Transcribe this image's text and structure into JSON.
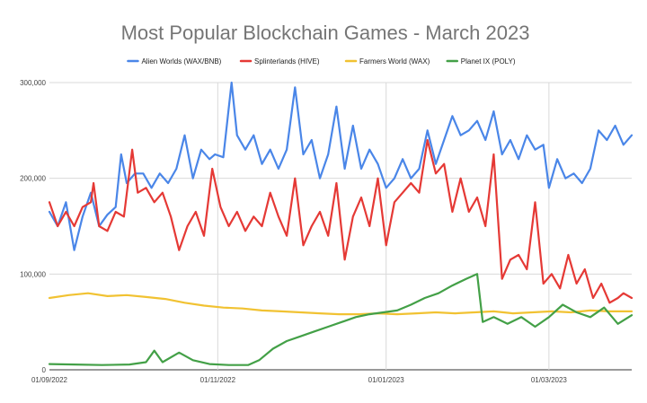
{
  "chart_data": {
    "type": "line",
    "title": "Most Popular Blockchain Games - March 2023",
    "xlabel": "",
    "ylabel": "",
    "x_start": "2022-09-01",
    "x_end": "2023-03-31",
    "x_ticks": [
      {
        "date": "2022-09-01",
        "label": "01/09/2022"
      },
      {
        "date": "2022-11-01",
        "label": "01/11/2022"
      },
      {
        "date": "2023-01-01",
        "label": "01/01/2023"
      },
      {
        "date": "2023-03-01",
        "label": "01/03/2023"
      }
    ],
    "y_ticks": [
      {
        "value": 0,
        "label": "0"
      },
      {
        "value": 100000,
        "label": "100,000"
      },
      {
        "value": 200000,
        "label": "200,000"
      },
      {
        "value": 300000,
        "label": "300,000"
      }
    ],
    "ylim": [
      0,
      300000
    ],
    "grid": true,
    "legend_position": "top",
    "series": [
      {
        "name": "Alien Worlds (WAX/BNB)",
        "color": "#4a86e8",
        "points": [
          [
            "2022-09-01",
            165000
          ],
          [
            "2022-09-04",
            150000
          ],
          [
            "2022-09-07",
            175000
          ],
          [
            "2022-09-10",
            125000
          ],
          [
            "2022-09-13",
            160000
          ],
          [
            "2022-09-16",
            185000
          ],
          [
            "2022-09-19",
            150000
          ],
          [
            "2022-09-22",
            162000
          ],
          [
            "2022-09-25",
            170000
          ],
          [
            "2022-09-27",
            225000
          ],
          [
            "2022-09-29",
            195000
          ],
          [
            "2022-10-02",
            205000
          ],
          [
            "2022-10-05",
            205000
          ],
          [
            "2022-10-08",
            190000
          ],
          [
            "2022-10-11",
            205000
          ],
          [
            "2022-10-14",
            195000
          ],
          [
            "2022-10-17",
            210000
          ],
          [
            "2022-10-20",
            245000
          ],
          [
            "2022-10-23",
            200000
          ],
          [
            "2022-10-26",
            230000
          ],
          [
            "2022-10-29",
            220000
          ],
          [
            "2022-10-31",
            225000
          ],
          [
            "2022-11-03",
            222000
          ],
          [
            "2022-11-06",
            300000
          ],
          [
            "2022-11-08",
            245000
          ],
          [
            "2022-11-11",
            230000
          ],
          [
            "2022-11-14",
            245000
          ],
          [
            "2022-11-17",
            215000
          ],
          [
            "2022-11-20",
            230000
          ],
          [
            "2022-11-23",
            210000
          ],
          [
            "2022-11-26",
            230000
          ],
          [
            "2022-11-29",
            295000
          ],
          [
            "2022-12-02",
            225000
          ],
          [
            "2022-12-05",
            240000
          ],
          [
            "2022-12-08",
            200000
          ],
          [
            "2022-12-11",
            225000
          ],
          [
            "2022-12-14",
            275000
          ],
          [
            "2022-12-17",
            210000
          ],
          [
            "2022-12-20",
            255000
          ],
          [
            "2022-12-23",
            210000
          ],
          [
            "2022-12-26",
            230000
          ],
          [
            "2022-12-29",
            215000
          ],
          [
            "2023-01-01",
            190000
          ],
          [
            "2023-01-04",
            200000
          ],
          [
            "2023-01-07",
            220000
          ],
          [
            "2023-01-10",
            200000
          ],
          [
            "2023-01-13",
            210000
          ],
          [
            "2023-01-16",
            250000
          ],
          [
            "2023-01-19",
            215000
          ],
          [
            "2023-01-22",
            240000
          ],
          [
            "2023-01-25",
            265000
          ],
          [
            "2023-01-28",
            245000
          ],
          [
            "2023-01-31",
            250000
          ],
          [
            "2023-02-03",
            260000
          ],
          [
            "2023-02-06",
            240000
          ],
          [
            "2023-02-09",
            270000
          ],
          [
            "2023-02-12",
            225000
          ],
          [
            "2023-02-15",
            240000
          ],
          [
            "2023-02-18",
            220000
          ],
          [
            "2023-02-21",
            245000
          ],
          [
            "2023-02-24",
            230000
          ],
          [
            "2023-02-27",
            235000
          ],
          [
            "2023-03-01",
            190000
          ],
          [
            "2023-03-04",
            220000
          ],
          [
            "2023-03-07",
            200000
          ],
          [
            "2023-03-10",
            205000
          ],
          [
            "2023-03-13",
            195000
          ],
          [
            "2023-03-16",
            210000
          ],
          [
            "2023-03-19",
            250000
          ],
          [
            "2023-03-22",
            240000
          ],
          [
            "2023-03-25",
            255000
          ],
          [
            "2023-03-28",
            235000
          ],
          [
            "2023-03-31",
            245000
          ]
        ]
      },
      {
        "name": "Splinterlands (HIVE)",
        "color": "#e53935",
        "points": [
          [
            "2022-09-01",
            175000
          ],
          [
            "2022-09-04",
            150000
          ],
          [
            "2022-09-07",
            165000
          ],
          [
            "2022-09-10",
            150000
          ],
          [
            "2022-09-13",
            170000
          ],
          [
            "2022-09-16",
            175000
          ],
          [
            "2022-09-17",
            195000
          ],
          [
            "2022-09-19",
            150000
          ],
          [
            "2022-09-22",
            145000
          ],
          [
            "2022-09-25",
            165000
          ],
          [
            "2022-09-28",
            160000
          ],
          [
            "2022-10-01",
            230000
          ],
          [
            "2022-10-03",
            185000
          ],
          [
            "2022-10-06",
            190000
          ],
          [
            "2022-10-09",
            175000
          ],
          [
            "2022-10-12",
            185000
          ],
          [
            "2022-10-15",
            160000
          ],
          [
            "2022-10-18",
            125000
          ],
          [
            "2022-10-21",
            150000
          ],
          [
            "2022-10-24",
            165000
          ],
          [
            "2022-10-27",
            140000
          ],
          [
            "2022-10-30",
            210000
          ],
          [
            "2022-11-02",
            170000
          ],
          [
            "2022-11-05",
            150000
          ],
          [
            "2022-11-08",
            165000
          ],
          [
            "2022-11-11",
            145000
          ],
          [
            "2022-11-14",
            160000
          ],
          [
            "2022-11-17",
            150000
          ],
          [
            "2022-11-20",
            185000
          ],
          [
            "2022-11-23",
            160000
          ],
          [
            "2022-11-26",
            140000
          ],
          [
            "2022-11-29",
            200000
          ],
          [
            "2022-12-02",
            130000
          ],
          [
            "2022-12-05",
            150000
          ],
          [
            "2022-12-08",
            165000
          ],
          [
            "2022-12-11",
            140000
          ],
          [
            "2022-12-14",
            195000
          ],
          [
            "2022-12-17",
            115000
          ],
          [
            "2022-12-20",
            160000
          ],
          [
            "2022-12-23",
            180000
          ],
          [
            "2022-12-26",
            150000
          ],
          [
            "2022-12-29",
            200000
          ],
          [
            "2023-01-01",
            130000
          ],
          [
            "2023-01-04",
            175000
          ],
          [
            "2023-01-07",
            185000
          ],
          [
            "2023-01-10",
            195000
          ],
          [
            "2023-01-13",
            185000
          ],
          [
            "2023-01-16",
            240000
          ],
          [
            "2023-01-19",
            205000
          ],
          [
            "2023-01-22",
            215000
          ],
          [
            "2023-01-25",
            165000
          ],
          [
            "2023-01-28",
            200000
          ],
          [
            "2023-01-31",
            165000
          ],
          [
            "2023-02-03",
            180000
          ],
          [
            "2023-02-06",
            150000
          ],
          [
            "2023-02-09",
            225000
          ],
          [
            "2023-02-12",
            95000
          ],
          [
            "2023-02-15",
            115000
          ],
          [
            "2023-02-18",
            120000
          ],
          [
            "2023-02-21",
            105000
          ],
          [
            "2023-02-24",
            175000
          ],
          [
            "2023-02-27",
            90000
          ],
          [
            "2023-03-02",
            100000
          ],
          [
            "2023-03-05",
            85000
          ],
          [
            "2023-03-08",
            120000
          ],
          [
            "2023-03-11",
            90000
          ],
          [
            "2023-03-14",
            105000
          ],
          [
            "2023-03-17",
            75000
          ],
          [
            "2023-03-20",
            90000
          ],
          [
            "2023-03-23",
            70000
          ],
          [
            "2023-03-26",
            75000
          ],
          [
            "2023-03-28",
            80000
          ],
          [
            "2023-03-31",
            75000
          ]
        ]
      },
      {
        "name": "Farmers World (WAX)",
        "color": "#f1c232",
        "points": [
          [
            "2022-09-01",
            75000
          ],
          [
            "2022-09-08",
            78000
          ],
          [
            "2022-09-15",
            80000
          ],
          [
            "2022-09-22",
            77000
          ],
          [
            "2022-09-29",
            78000
          ],
          [
            "2022-10-06",
            76000
          ],
          [
            "2022-10-13",
            74000
          ],
          [
            "2022-10-20",
            70000
          ],
          [
            "2022-10-27",
            67000
          ],
          [
            "2022-11-03",
            65000
          ],
          [
            "2022-11-10",
            64000
          ],
          [
            "2022-11-17",
            62000
          ],
          [
            "2022-11-24",
            61000
          ],
          [
            "2022-12-01",
            60000
          ],
          [
            "2022-12-08",
            59000
          ],
          [
            "2022-12-15",
            58000
          ],
          [
            "2022-12-22",
            58000
          ],
          [
            "2022-12-29",
            59000
          ],
          [
            "2023-01-05",
            58000
          ],
          [
            "2023-01-12",
            59000
          ],
          [
            "2023-01-19",
            60000
          ],
          [
            "2023-01-26",
            59000
          ],
          [
            "2023-02-02",
            60000
          ],
          [
            "2023-02-09",
            61000
          ],
          [
            "2023-02-16",
            59000
          ],
          [
            "2023-02-23",
            60000
          ],
          [
            "2023-03-02",
            61000
          ],
          [
            "2023-03-09",
            60000
          ],
          [
            "2023-03-16",
            62000
          ],
          [
            "2023-03-23",
            61000
          ],
          [
            "2023-03-31",
            61000
          ]
        ]
      },
      {
        "name": "Planet IX (POLY)",
        "color": "#43a047",
        "points": [
          [
            "2022-09-01",
            6000
          ],
          [
            "2022-09-10",
            5500
          ],
          [
            "2022-09-20",
            5000
          ],
          [
            "2022-09-30",
            5500
          ],
          [
            "2022-10-06",
            8000
          ],
          [
            "2022-10-09",
            20000
          ],
          [
            "2022-10-12",
            8000
          ],
          [
            "2022-10-18",
            18000
          ],
          [
            "2022-10-23",
            10000
          ],
          [
            "2022-10-29",
            6000
          ],
          [
            "2022-11-05",
            5000
          ],
          [
            "2022-11-12",
            5000
          ],
          [
            "2022-11-16",
            10000
          ],
          [
            "2022-11-21",
            22000
          ],
          [
            "2022-11-26",
            30000
          ],
          [
            "2022-12-01",
            35000
          ],
          [
            "2022-12-06",
            40000
          ],
          [
            "2022-12-11",
            45000
          ],
          [
            "2022-12-16",
            50000
          ],
          [
            "2022-12-21",
            55000
          ],
          [
            "2022-12-26",
            58000
          ],
          [
            "2022-12-31",
            60000
          ],
          [
            "2023-01-05",
            62000
          ],
          [
            "2023-01-10",
            68000
          ],
          [
            "2023-01-15",
            75000
          ],
          [
            "2023-01-20",
            80000
          ],
          [
            "2023-01-25",
            88000
          ],
          [
            "2023-01-30",
            95000
          ],
          [
            "2023-02-03",
            100000
          ],
          [
            "2023-02-05",
            50000
          ],
          [
            "2023-02-09",
            55000
          ],
          [
            "2023-02-14",
            48000
          ],
          [
            "2023-02-19",
            55000
          ],
          [
            "2023-02-24",
            45000
          ],
          [
            "2023-03-01",
            55000
          ],
          [
            "2023-03-06",
            68000
          ],
          [
            "2023-03-11",
            60000
          ],
          [
            "2023-03-16",
            55000
          ],
          [
            "2023-03-21",
            65000
          ],
          [
            "2023-03-26",
            48000
          ],
          [
            "2023-03-31",
            57000
          ]
        ]
      }
    ]
  }
}
